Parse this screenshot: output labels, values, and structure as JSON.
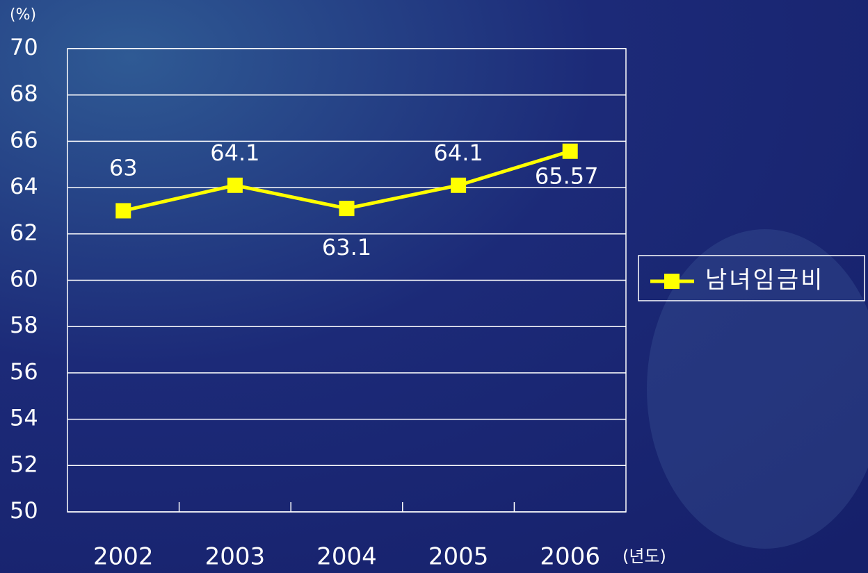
{
  "chart_data": {
    "type": "line",
    "y_unit_label": "(%)",
    "x_unit_label": "(년도)",
    "categories": [
      "2002",
      "2003",
      "2004",
      "2005",
      "2006"
    ],
    "series": [
      {
        "name": "남녀임금비",
        "color": "#ffff00",
        "values": [
          63,
          64.1,
          63.1,
          64.1,
          65.57
        ]
      }
    ],
    "ylim": [
      50,
      70
    ],
    "yticks": [
      50,
      52,
      54,
      56,
      58,
      60,
      62,
      64,
      66,
      68,
      70
    ],
    "grid": true,
    "legend": "right"
  }
}
